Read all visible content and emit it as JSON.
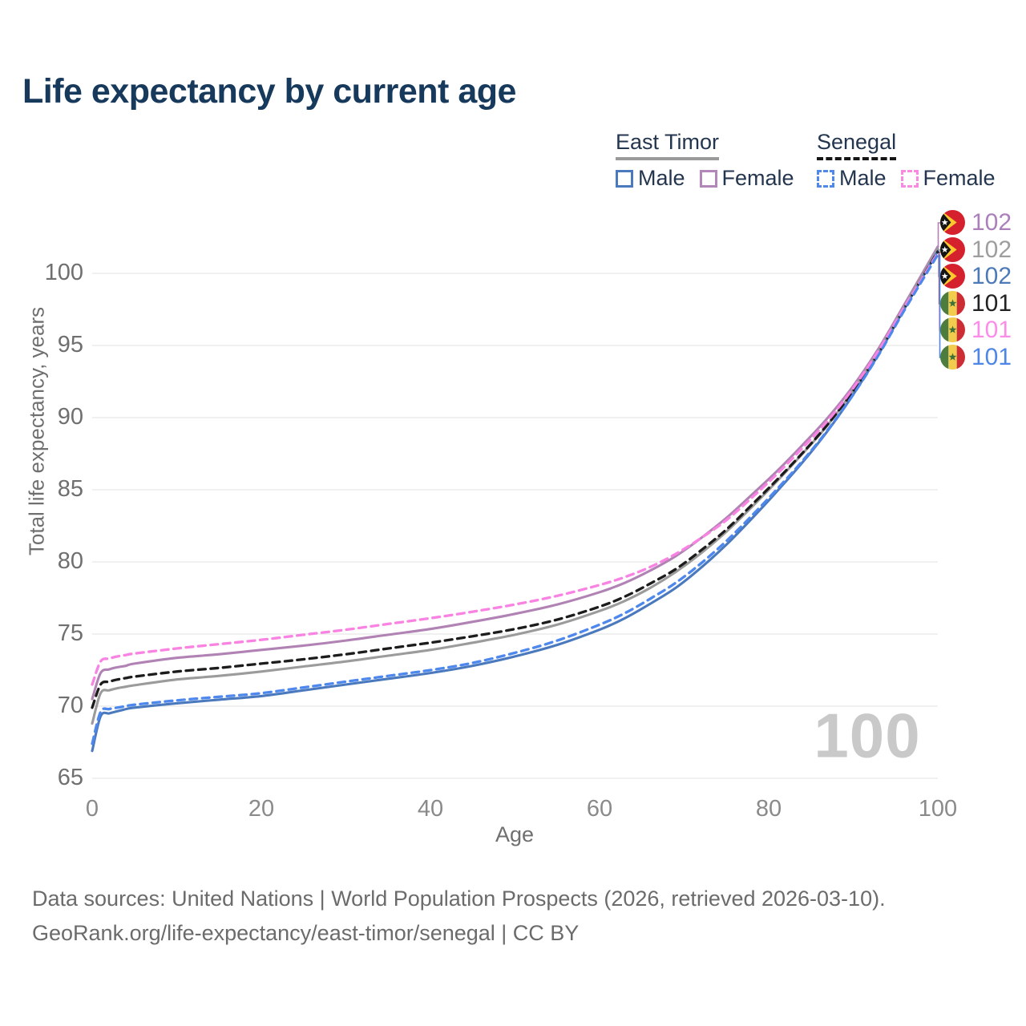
{
  "title": "Life expectancy by current age",
  "legend": {
    "groups": [
      {
        "country": "East Timor",
        "line_style": "solid",
        "underline_color": "#9a9a9a",
        "items": [
          {
            "label": "Male",
            "color": "#4a79bd",
            "dashed": false
          },
          {
            "label": "Female",
            "color": "#b286b8",
            "dashed": false
          }
        ]
      },
      {
        "country": "Senegal",
        "line_style": "dashed",
        "underline_color": "#151515",
        "items": [
          {
            "label": "Male",
            "color": "#4f88ec",
            "dashed": true
          },
          {
            "label": "Female",
            "color": "#f98ae2",
            "dashed": true
          }
        ]
      }
    ]
  },
  "chart_data": {
    "type": "line",
    "title": "Life expectancy by current age",
    "xlabel": "Age",
    "ylabel": "Total life expectancy, years",
    "xlim": [
      0,
      100
    ],
    "ylim": [
      65,
      102
    ],
    "x_ticks": [
      0,
      20,
      40,
      60,
      80,
      100
    ],
    "y_ticks": [
      65,
      70,
      75,
      80,
      85,
      90,
      95,
      100
    ],
    "grid": "horizontal",
    "hover_age_label": "100",
    "x": [
      0,
      1,
      2,
      3,
      4,
      5,
      10,
      15,
      20,
      25,
      30,
      35,
      40,
      45,
      50,
      55,
      60,
      63,
      66,
      69,
      72,
      75,
      78,
      81,
      84,
      87,
      90,
      93,
      96,
      100
    ],
    "series": [
      {
        "name": "East Timor Female",
        "country": "East Timor",
        "sex": "Female",
        "color": "#b183b5",
        "dashed": false,
        "values": [
          70.5,
          72.3,
          72.55,
          72.7,
          72.8,
          72.95,
          73.35,
          73.6,
          73.9,
          74.2,
          74.55,
          74.95,
          75.35,
          75.85,
          76.4,
          77.05,
          77.9,
          78.55,
          79.4,
          80.4,
          81.65,
          83.05,
          84.65,
          86.3,
          88.1,
          90.0,
          92.2,
          94.8,
          97.8,
          101.85
        ],
        "end_label": {
          "text": "102",
          "flag": "east-timor",
          "color": "#ab7fba"
        }
      },
      {
        "name": "East Timor",
        "country": "East Timor",
        "sex": "Both",
        "color": "#9b9b9b",
        "dashed": false,
        "values": [
          68.8,
          70.9,
          71.1,
          71.25,
          71.35,
          71.45,
          71.85,
          72.1,
          72.4,
          72.75,
          73.1,
          73.5,
          73.9,
          74.4,
          74.95,
          75.65,
          76.6,
          77.3,
          78.2,
          79.3,
          80.6,
          82.1,
          83.8,
          85.6,
          87.5,
          89.5,
          91.9,
          94.6,
          97.65,
          101.7
        ],
        "end_label": {
          "text": "102",
          "flag": "east-timor",
          "color": "#9e9e9e"
        }
      },
      {
        "name": "East Timor Male",
        "country": "East Timor",
        "sex": "Male",
        "color": "#4a79bd",
        "dashed": false,
        "values": [
          66.9,
          69.3,
          69.5,
          69.65,
          69.8,
          69.9,
          70.2,
          70.45,
          70.7,
          71.1,
          71.5,
          71.9,
          72.3,
          72.8,
          73.45,
          74.25,
          75.3,
          76.1,
          77.1,
          78.2,
          79.6,
          81.2,
          83.0,
          84.9,
          86.9,
          89.1,
          91.6,
          94.4,
          97.5,
          101.55
        ],
        "end_label": {
          "text": "102",
          "flag": "east-timor",
          "color": "#4c7ab8"
        }
      },
      {
        "name": "Senegal",
        "country": "Senegal",
        "sex": "Both",
        "color": "#1c1c1c",
        "dashed": true,
        "values": [
          69.9,
          71.5,
          71.7,
          71.85,
          71.95,
          72.05,
          72.4,
          72.65,
          72.95,
          73.25,
          73.6,
          74.0,
          74.4,
          74.85,
          75.35,
          76.0,
          76.9,
          77.6,
          78.5,
          79.5,
          80.8,
          82.25,
          83.95,
          85.7,
          87.55,
          89.55,
          91.85,
          94.5,
          97.55,
          101.5
        ],
        "end_label": {
          "text": "101",
          "flag": "senegal",
          "color": "#222222"
        }
      },
      {
        "name": "Senegal Female",
        "country": "Senegal",
        "sex": "Female",
        "color": "#f983e2",
        "dashed": true,
        "values": [
          71.5,
          73.1,
          73.3,
          73.45,
          73.55,
          73.65,
          74.0,
          74.3,
          74.6,
          74.95,
          75.3,
          75.7,
          76.1,
          76.55,
          77.05,
          77.65,
          78.4,
          78.95,
          79.65,
          80.55,
          81.65,
          82.9,
          84.45,
          86.1,
          87.9,
          89.8,
          92.05,
          94.65,
          97.6,
          101.42
        ],
        "end_label": {
          "text": "101",
          "flag": "senegal",
          "color": "#fb8ce8"
        }
      },
      {
        "name": "Senegal Male",
        "country": "Senegal",
        "sex": "Male",
        "color": "#4f88ec",
        "dashed": true,
        "values": [
          67.4,
          69.6,
          69.8,
          69.9,
          70.0,
          70.1,
          70.4,
          70.65,
          70.9,
          71.3,
          71.7,
          72.1,
          72.5,
          73.0,
          73.7,
          74.55,
          75.65,
          76.45,
          77.45,
          78.55,
          79.9,
          81.45,
          83.2,
          85.05,
          87.0,
          89.15,
          91.6,
          94.35,
          97.4,
          101.3
        ],
        "end_label": {
          "text": "101",
          "flag": "senegal",
          "color": "#4e86e8"
        }
      }
    ]
  },
  "footer": {
    "line1": "Data sources: United Nations | World Population Prospects (2026, retrieved 2026-03-10).",
    "line2": "GeoRank.org/life-expectancy/east-timor/senegal | CC BY"
  }
}
